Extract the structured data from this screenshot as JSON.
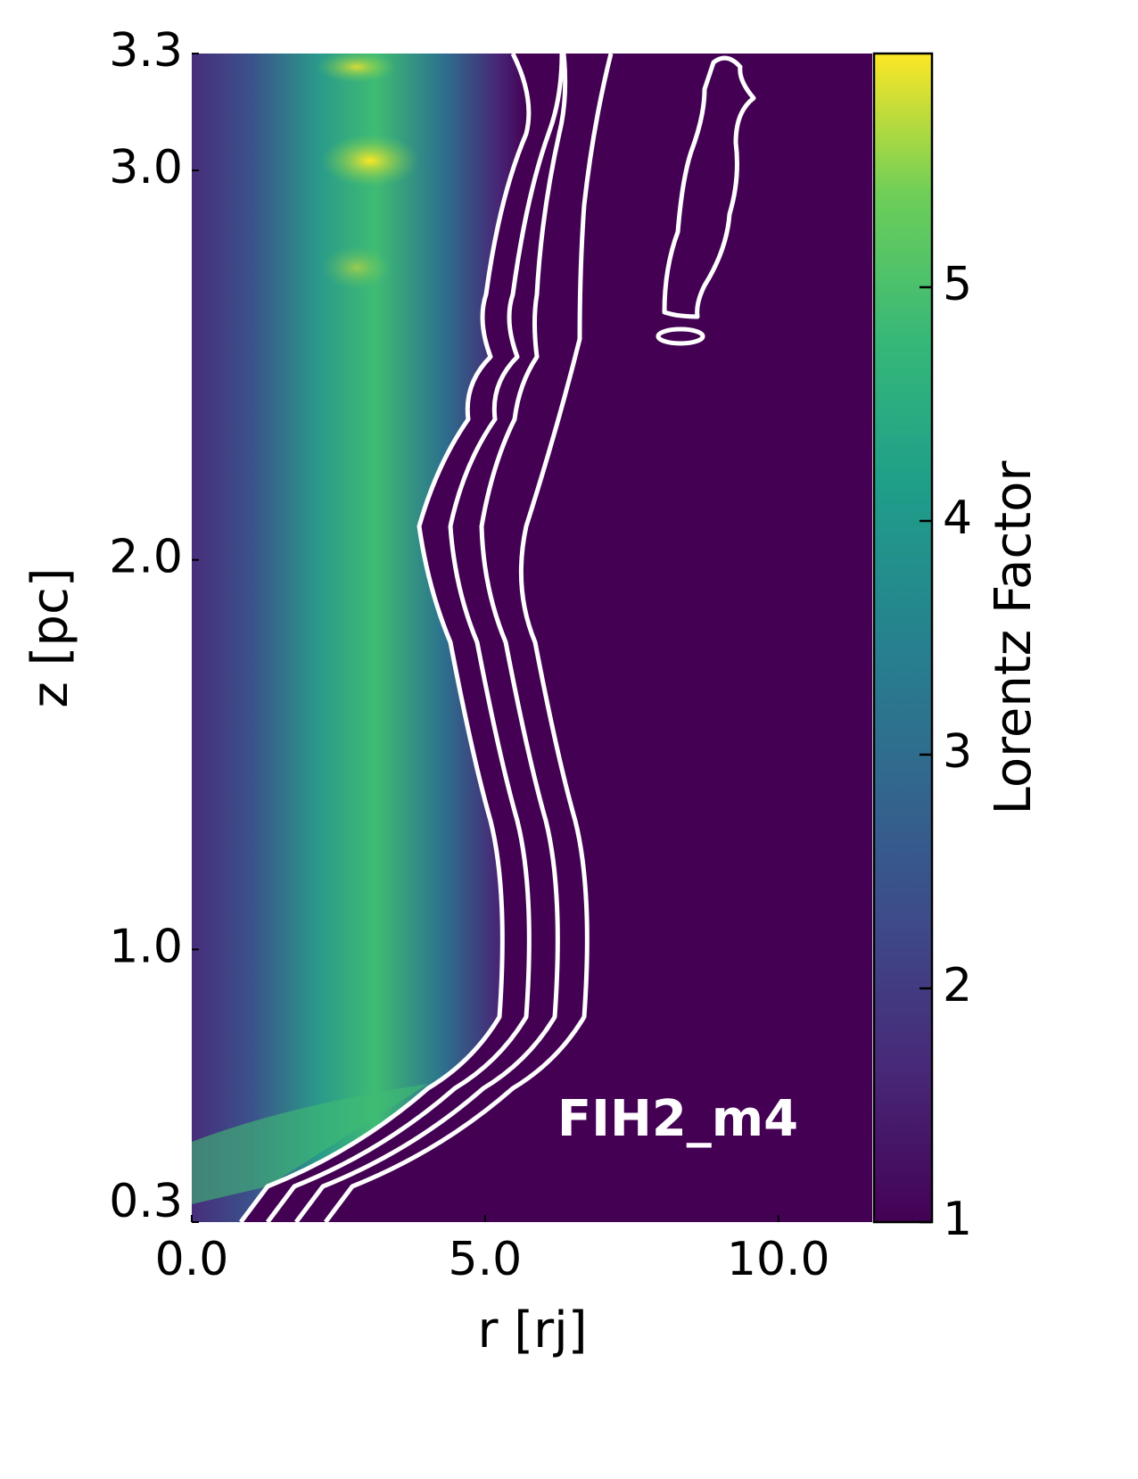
{
  "chart_data": {
    "type": "heatmap",
    "x_label": "r [rj]",
    "y_label": "z [pc]",
    "colorbar_label": "Lorentz Factor",
    "annotation": "FIH2_m4",
    "xlim": [
      0,
      11.6
    ],
    "xticks": [
      {
        "value": 0,
        "label": "0.0"
      },
      {
        "value": 5,
        "label": "5.0"
      },
      {
        "value": 10,
        "label": "10.0"
      }
    ],
    "ylim": [
      0.3,
      3.3
    ],
    "yticks": [
      0.3,
      {
        "value": 1,
        "label": "1.0"
      },
      {
        "value": 2,
        "label": "2.0"
      },
      {
        "value": 3,
        "label": "3.0"
      },
      3.3
    ],
    "clim": [
      1,
      6
    ],
    "cticks": [
      1,
      2,
      3,
      4,
      5
    ]
  }
}
